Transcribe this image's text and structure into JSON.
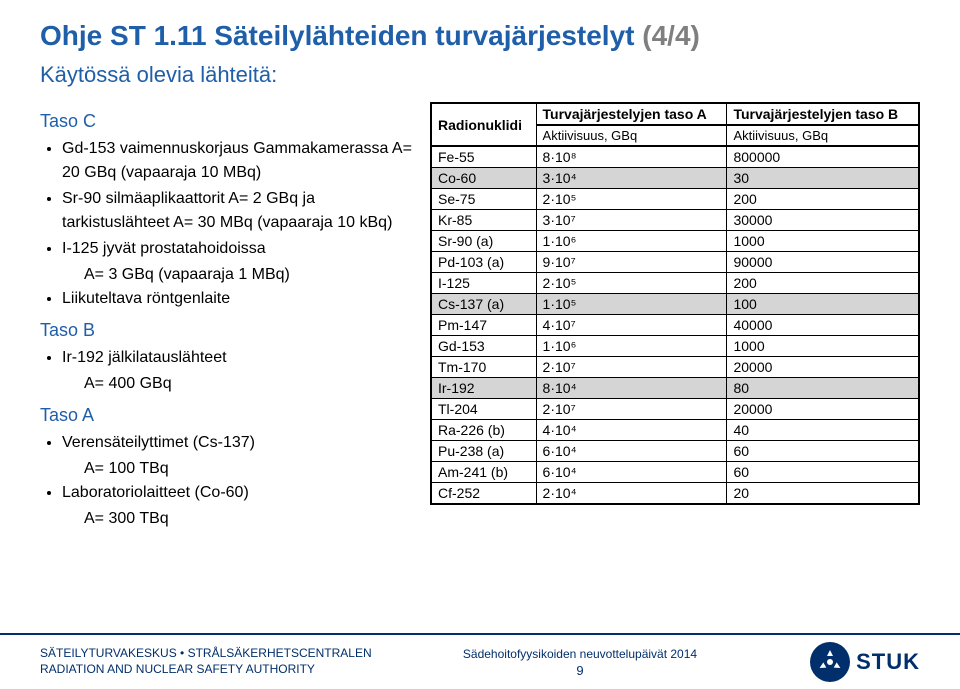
{
  "title_main": "Ohje ST 1.11 Säteilylähteiden turvajärjestelyt ",
  "title_gray": "(4/4)",
  "subtitle": "Käytössä olevia lähteitä:",
  "sections": [
    {
      "head": "Taso C",
      "items": [
        "Gd-153 vaimennuskorjaus Gammakamerassa  A= 20 GBq (vapaaraja 10 MBq)",
        "Sr-90 silmäaplikaattorit  A= 2 GBq ja tarkistuslähteet  A= 30 MBq (vapaaraja 10 kBq)",
        "I-125 jyvät prostatahoidoissa",
        "A= 3 GBq (vapaaraja 1 MBq)",
        "Liikuteltava röntgenlaite"
      ],
      "indent_idx": 3
    },
    {
      "head": "Taso B",
      "items": [
        "Ir-192 jälkilatauslähteet",
        "A= 400 GBq"
      ],
      "indent_idx": 1
    },
    {
      "head": "Taso A",
      "items": [
        "Verensäteilyttimet (Cs-137)",
        "A= 100 TBq",
        "Laboratoriolaitteet (Co-60)",
        "A= 300 TBq"
      ],
      "indent_idx": [
        1,
        3
      ]
    }
  ],
  "table": {
    "headers": [
      "Radionuklidi",
      "Turvajärjestelyjen taso A",
      "Turvajärjestelyjen taso B"
    ],
    "subheaders": [
      "",
      "Aktiivisuus, GBq",
      "Aktiivisuus, GBq"
    ],
    "rows": [
      {
        "cells": [
          "Fe-55",
          "8·10⁸",
          "800000"
        ],
        "hl": false
      },
      {
        "cells": [
          "Co-60",
          "3·10⁴",
          "30"
        ],
        "hl": true
      },
      {
        "cells": [
          "Se-75",
          "2·10⁵",
          "200"
        ],
        "hl": false
      },
      {
        "cells": [
          "Kr-85",
          "3·10⁷",
          "30000"
        ],
        "hl": false
      },
      {
        "cells": [
          "Sr-90 (a)",
          "1·10⁶",
          "1000"
        ],
        "hl": false
      },
      {
        "cells": [
          "Pd-103 (a)",
          "9·10⁷",
          "90000"
        ],
        "hl": false
      },
      {
        "cells": [
          "I-125",
          "2·10⁵",
          "200"
        ],
        "hl": false
      },
      {
        "cells": [
          "Cs-137 (a)",
          "1·10⁵",
          "100"
        ],
        "hl": true
      },
      {
        "cells": [
          "Pm-147",
          "4·10⁷",
          "40000"
        ],
        "hl": false
      },
      {
        "cells": [
          "Gd-153",
          "1·10⁶",
          "1000"
        ],
        "hl": false
      },
      {
        "cells": [
          "Tm-170",
          "2·10⁷",
          "20000"
        ],
        "hl": false
      },
      {
        "cells": [
          "Ir-192",
          "8·10⁴",
          "80"
        ],
        "hl": true
      },
      {
        "cells": [
          "Tl-204",
          "2·10⁷",
          "20000"
        ],
        "hl": false
      },
      {
        "cells": [
          "Ra-226 (b)",
          "4·10⁴",
          "40"
        ],
        "hl": false
      },
      {
        "cells": [
          "Pu-238 (a)",
          "6·10⁴",
          "60"
        ],
        "hl": false
      },
      {
        "cells": [
          "Am-241 (b)",
          "6·10⁴",
          "60"
        ],
        "hl": false
      },
      {
        "cells": [
          "Cf-252",
          "2·10⁴",
          "20"
        ],
        "hl": false
      }
    ]
  },
  "footer": {
    "left1": "SÄTEILYTURVAKESKUS • STRÅLSÄKERHETSCENTRALEN",
    "left2": "RADIATION AND NUCLEAR SAFETY AUTHORITY",
    "center": "Sädehoitofyysikoiden neuvottelupäivät 2014",
    "page": "9",
    "logo_text": "STUK"
  },
  "colors": {
    "heading": "#1f5ea8",
    "gray": "#7f7f7f",
    "footer_line": "#002f6c",
    "highlight_row": "#d5d5d5"
  }
}
